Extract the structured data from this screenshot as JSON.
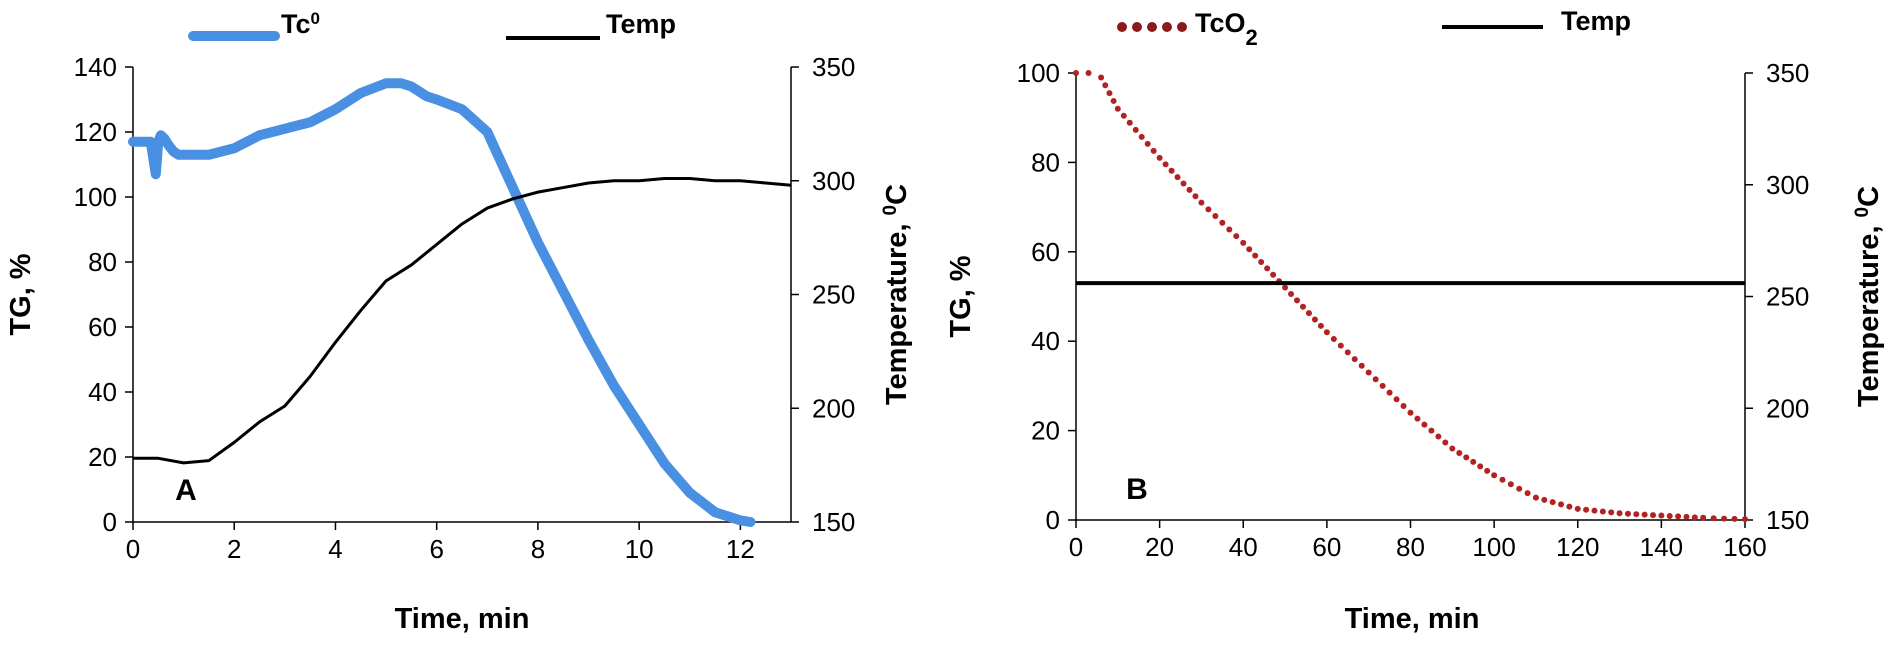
{
  "figure": {
    "panels": [
      "A",
      "B"
    ]
  },
  "chart_data": [
    {
      "type": "line",
      "panel_label": "A",
      "xlabel": "Time, min",
      "ylabel_left": "TG, %",
      "ylabel_right_main": "Temperature, ",
      "ylabel_right_sup": "0",
      "ylabel_right_tail": "C",
      "xlim": [
        0,
        13
      ],
      "ylim_left": [
        0,
        140
      ],
      "ylim_right": [
        150,
        350
      ],
      "x_ticks": [
        0,
        2,
        4,
        6,
        8,
        10,
        12
      ],
      "y_ticks_left": [
        0,
        20,
        40,
        60,
        80,
        100,
        120,
        140
      ],
      "y_ticks_right": [
        150,
        200,
        250,
        300,
        350
      ],
      "grid": false,
      "legend_position": "top",
      "legend": [
        {
          "name_main": "Tc",
          "name_sup": "0",
          "color": "#4a90e2",
          "style": "thick-solid"
        },
        {
          "name_main": "Temp",
          "name_sup": "",
          "color": "#000000",
          "style": "solid"
        }
      ],
      "series": [
        {
          "name": "Tc0",
          "axis": "left",
          "color": "#4a90e2",
          "x": [
            0,
            0.35,
            0.4,
            0.45,
            0.5,
            0.55,
            0.62,
            0.7,
            0.8,
            0.9,
            1.0,
            1.5,
            2.0,
            2.5,
            3.0,
            3.5,
            4.0,
            4.5,
            5.0,
            5.3,
            5.5,
            5.8,
            6.0,
            6.5,
            7.0,
            7.5,
            8.0,
            8.5,
            9.0,
            9.5,
            10.0,
            10.5,
            11.0,
            11.5,
            12.0,
            12.2
          ],
          "y": [
            117,
            117,
            112,
            107,
            117,
            119,
            118,
            116,
            114,
            113,
            113,
            113,
            115,
            119,
            121,
            123,
            127,
            132,
            135,
            135,
            134,
            131,
            130,
            127,
            120,
            103,
            86,
            71,
            56,
            42,
            30,
            18,
            9,
            3,
            0.5,
            0
          ]
        },
        {
          "name": "Temp",
          "axis": "right",
          "color": "#000000",
          "x": [
            0,
            0.5,
            1.0,
            1.5,
            2.0,
            2.5,
            3.0,
            3.5,
            4.0,
            4.5,
            5.0,
            5.5,
            6.0,
            6.5,
            7.0,
            7.5,
            8.0,
            8.5,
            9.0,
            9.5,
            10.0,
            10.5,
            11.0,
            11.5,
            12.0,
            12.5,
            13.0
          ],
          "y": [
            178,
            178,
            176,
            177,
            185,
            194,
            201,
            214,
            229,
            243,
            256,
            263,
            272,
            281,
            288,
            292,
            295,
            297,
            299,
            300,
            300,
            301,
            301,
            300,
            300,
            299,
            298
          ]
        }
      ]
    },
    {
      "type": "line",
      "panel_label": "B",
      "xlabel": "Time, min",
      "ylabel_left": "TG, %",
      "ylabel_right_main": "Temperature, ",
      "ylabel_right_sup": "0",
      "ylabel_right_tail": "C",
      "xlim": [
        0,
        160
      ],
      "ylim_left": [
        0,
        100
      ],
      "ylim_right": [
        150,
        350
      ],
      "x_ticks": [
        0,
        20,
        40,
        60,
        80,
        100,
        120,
        140,
        160
      ],
      "y_ticks_left": [
        0,
        20,
        40,
        60,
        80,
        100
      ],
      "y_ticks_right": [
        150,
        200,
        250,
        300,
        350
      ],
      "grid": false,
      "legend_position": "top",
      "legend": [
        {
          "name_main": "TcO",
          "name_sub": "2",
          "color": "#8b1a1a",
          "style": "dotted"
        },
        {
          "name_main": "Temp",
          "name_sub": "",
          "color": "#000000",
          "style": "solid"
        }
      ],
      "series": [
        {
          "name": "TcO2",
          "axis": "left",
          "color": "#b22222",
          "x": [
            0,
            3,
            6,
            10,
            20,
            30,
            40,
            50,
            60,
            70,
            80,
            90,
            100,
            110,
            120,
            130,
            140,
            150,
            155,
            160
          ],
          "y": [
            100,
            100,
            99,
            92,
            81,
            71,
            62,
            52,
            42,
            33,
            24,
            16,
            10,
            5,
            2.5,
            1.5,
            1,
            0.5,
            0.3,
            0.2
          ]
        },
        {
          "name": "Temp",
          "axis": "right",
          "color": "#000000",
          "x": [
            0,
            160
          ],
          "y": [
            256,
            256
          ]
        }
      ]
    }
  ]
}
